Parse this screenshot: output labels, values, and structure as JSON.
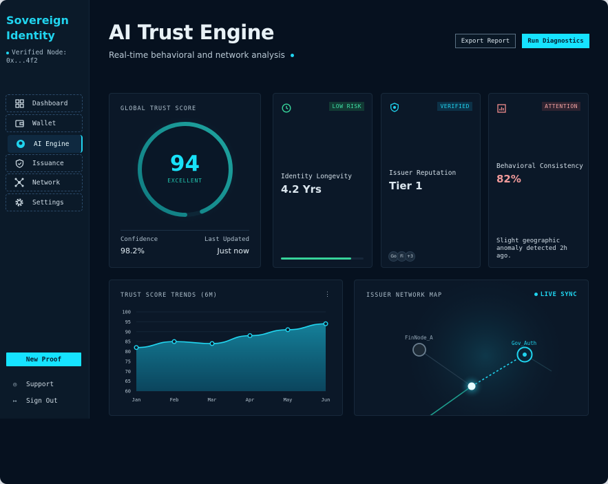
{
  "sidebar": {
    "brand": "Sovereign Identity",
    "node_status": "Verified Node: 0x...4f2",
    "items": [
      {
        "label": "Dashboard",
        "icon": "grid-icon"
      },
      {
        "label": "Wallet",
        "icon": "wallet-icon"
      },
      {
        "label": "AI Engine",
        "icon": "brain-icon",
        "active": true
      },
      {
        "label": "Issuance",
        "icon": "shield-icon"
      },
      {
        "label": "Network",
        "icon": "network-icon"
      },
      {
        "label": "Settings",
        "icon": "gear-icon"
      }
    ],
    "new_proof": "New Proof",
    "support": "Support",
    "sign_out": "Sign Out"
  },
  "header": {
    "title": "AI Trust Engine",
    "subtitle": "Real-time behavioral and network analysis",
    "export_label": "Export Report",
    "diagnostics_label": "Run Diagnostics"
  },
  "trust_score": {
    "label": "GLOBAL TRUST SCORE",
    "score": "94",
    "rating": "EXCELLENT",
    "gauge_fraction": 0.94,
    "confidence_label": "Confidence",
    "confidence_value": "98.2%",
    "updated_label": "Last Updated",
    "updated_value": "Just now"
  },
  "cards": {
    "longevity": {
      "badge": "LOW RISK",
      "label": "Identity Longevity",
      "value": "4.2 Yrs",
      "progress": 0.85
    },
    "reputation": {
      "badge": "VERIFIED",
      "label": "Issuer Reputation",
      "value": "Tier 1",
      "avatar_a": "Go",
      "avatar_b": "Fi",
      "more": "+3"
    },
    "behavior": {
      "badge": "ATTENTION",
      "label": "Behavioral Consistency",
      "value": "82%",
      "note": "Slight geographic anomaly detected 2h ago."
    }
  },
  "colors": {
    "accent": "#16e3ff",
    "success": "#37d39a",
    "warning": "#f08c8c",
    "background": "#06111f"
  },
  "trends": {
    "title": "TRUST SCORE TRENDS (6M)",
    "menu_icon": "⋮"
  },
  "chart_data": {
    "type": "area",
    "title": "TRUST SCORE TRENDS (6M)",
    "categories": [
      "Jan",
      "Feb",
      "Mar",
      "Apr",
      "May",
      "Jun"
    ],
    "values": [
      82,
      85,
      84,
      88,
      91,
      94
    ],
    "ylim": [
      60,
      100
    ],
    "yticks": [
      60,
      65,
      70,
      75,
      80,
      85,
      90,
      95,
      100
    ],
    "grid": true
  },
  "network": {
    "title": "ISSUER NETWORK MAP",
    "live": "LIVE SYNC",
    "node_a": "FinNode_A",
    "node_b": "Gov_Auth"
  }
}
